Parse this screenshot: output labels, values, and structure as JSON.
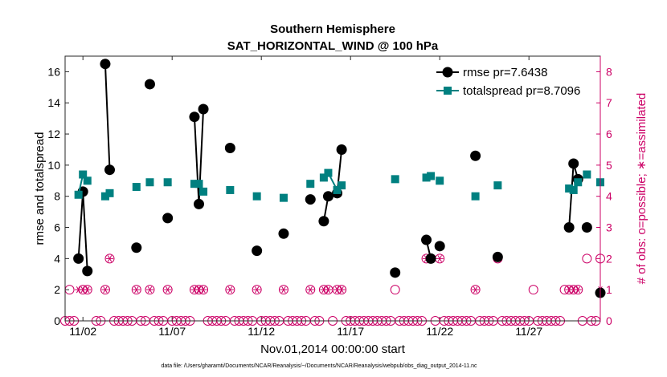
{
  "chart_data": {
    "type": "line",
    "title": "Southern Hemisphere",
    "subtitle": "SAT_HORIZONTAL_WIND @ 100 hPa",
    "xlabel": "Nov.01,2014 00:00:00 start",
    "ylabel": "rmse and totalspread",
    "y2label": "# of obs: o=possible; ∗=assimilated",
    "footnote": "data file: /Users/gharamti/Documents/NCAR/Reanalysis/~/Documents/NCAR/Reanalysis/webpub/obs_diag_output_2014-11.nc",
    "xlim": [
      0.5,
      30.5
    ],
    "ylim": [
      0,
      17
    ],
    "y2lim": [
      0,
      8.5
    ],
    "xticks": [
      1.5,
      6.5,
      11.5,
      16.5,
      21.5,
      26.5
    ],
    "xtick_labels": [
      "11/02",
      "11/07",
      "11/12",
      "11/17",
      "11/22",
      "11/27"
    ],
    "yticks": [
      0,
      2,
      4,
      6,
      8,
      10,
      12,
      14,
      16
    ],
    "y2ticks": [
      0,
      1,
      2,
      3,
      4,
      5,
      6,
      7,
      8
    ],
    "legend_position": "top-right",
    "series": [
      {
        "name": "rmse pr=7.6438",
        "color": "#000000",
        "points": [
          [
            1.25,
            4.0
          ],
          [
            1.5,
            8.3
          ],
          [
            1.75,
            3.2
          ],
          null,
          [
            2.75,
            16.5
          ],
          [
            3.0,
            9.7
          ],
          null,
          [
            4.5,
            4.7
          ],
          null,
          [
            5.25,
            15.2
          ],
          null,
          [
            6.25,
            6.6
          ],
          null,
          [
            7.75,
            13.1
          ],
          [
            8.0,
            7.5
          ],
          [
            8.25,
            13.6
          ],
          null,
          [
            9.75,
            11.1
          ],
          null,
          [
            11.25,
            4.5
          ],
          null,
          [
            12.75,
            5.6
          ],
          null,
          [
            14.25,
            7.8
          ],
          null,
          [
            15.0,
            6.4
          ],
          [
            15.25,
            8.0
          ],
          [
            15.75,
            8.2
          ],
          [
            16.0,
            11.0
          ],
          null,
          [
            19.0,
            3.1
          ],
          null,
          [
            20.75,
            5.2
          ],
          [
            21.0,
            4.0
          ],
          null,
          [
            21.5,
            4.8
          ],
          null,
          [
            23.5,
            10.6
          ],
          null,
          [
            24.75,
            4.1
          ],
          null,
          [
            28.75,
            6.0
          ],
          [
            29.0,
            10.1
          ],
          [
            29.25,
            9.1
          ],
          null,
          [
            29.75,
            6.0
          ],
          null,
          [
            30.5,
            1.8
          ]
        ]
      },
      {
        "name": "totalspread pr=8.7096",
        "color": "#008080",
        "points": [
          [
            1.25,
            8.1
          ],
          [
            1.5,
            9.4
          ],
          [
            1.75,
            9.0
          ],
          null,
          [
            2.75,
            8.0
          ],
          [
            3.0,
            8.2
          ],
          null,
          [
            4.5,
            8.6
          ],
          null,
          [
            5.25,
            8.9
          ],
          null,
          [
            6.25,
            8.9
          ],
          null,
          [
            7.75,
            8.8
          ],
          [
            8.0,
            8.8
          ],
          [
            8.25,
            8.3
          ],
          null,
          [
            9.75,
            8.4
          ],
          null,
          [
            11.25,
            8.0
          ],
          null,
          [
            12.75,
            7.9
          ],
          null,
          [
            14.25,
            8.8
          ],
          null,
          [
            15.0,
            9.2
          ],
          [
            15.25,
            9.5
          ],
          [
            15.75,
            8.4
          ],
          [
            16.0,
            8.7
          ],
          null,
          [
            19.0,
            9.1
          ],
          null,
          [
            20.75,
            9.2
          ],
          [
            21.0,
            9.3
          ],
          null,
          [
            21.5,
            9.0
          ],
          null,
          [
            23.5,
            8.0
          ],
          null,
          [
            24.75,
            8.7
          ],
          null,
          [
            28.75,
            8.5
          ],
          [
            29.0,
            8.4
          ],
          [
            29.25,
            8.9
          ],
          null,
          [
            29.75,
            9.4
          ],
          null,
          [
            30.5,
            8.9
          ]
        ]
      }
    ],
    "obs": {
      "name": "# of obs",
      "color": "#cc0066",
      "possible": [
        [
          0.75,
          1
        ],
        [
          1.25,
          2
        ],
        [
          1.5,
          1
        ],
        [
          1.75,
          1
        ],
        [
          2.75,
          1
        ],
        [
          3.0,
          2
        ],
        [
          4.5,
          1
        ],
        [
          5.25,
          1
        ],
        [
          6.25,
          1
        ],
        [
          7.75,
          1
        ],
        [
          8.0,
          1
        ],
        [
          8.25,
          1
        ],
        [
          9.75,
          1
        ],
        [
          11.25,
          1
        ],
        [
          12.75,
          1
        ],
        [
          14.25,
          1
        ],
        [
          15.0,
          1
        ],
        [
          15.25,
          1
        ],
        [
          15.75,
          1
        ],
        [
          16.0,
          1
        ],
        [
          19.0,
          1
        ],
        [
          20.75,
          2
        ],
        [
          21.0,
          2
        ],
        [
          21.5,
          2
        ],
        [
          23.5,
          1
        ],
        [
          24.75,
          2
        ],
        [
          26.75,
          1
        ],
        [
          28.5,
          1
        ],
        [
          28.75,
          1
        ],
        [
          29.0,
          1
        ],
        [
          29.25,
          1
        ],
        [
          29.75,
          2
        ],
        [
          30.5,
          2
        ]
      ],
      "assimilated": [
        [
          1.25,
          1
        ],
        [
          1.5,
          1
        ],
        [
          1.75,
          1
        ],
        [
          2.75,
          1
        ],
        [
          3.0,
          2
        ],
        [
          4.5,
          1
        ],
        [
          5.25,
          1
        ],
        [
          6.25,
          1
        ],
        [
          7.75,
          1
        ],
        [
          8.0,
          1
        ],
        [
          8.25,
          1
        ],
        [
          9.75,
          1
        ],
        [
          11.25,
          1
        ],
        [
          12.75,
          1
        ],
        [
          14.25,
          1
        ],
        [
          15.0,
          1
        ],
        [
          15.25,
          1
        ],
        [
          15.75,
          1
        ],
        [
          16.0,
          1
        ],
        [
          20.75,
          2
        ],
        [
          21.0,
          2
        ],
        [
          21.5,
          2
        ],
        [
          23.5,
          1
        ],
        [
          24.75,
          2
        ],
        [
          28.75,
          1
        ],
        [
          29.0,
          1
        ],
        [
          29.25,
          1
        ],
        [
          30.5,
          1
        ]
      ],
      "zero_days": [
        0.5,
        0.75,
        1.0,
        2.25,
        2.5,
        3.25,
        3.5,
        3.75,
        4.0,
        4.25,
        4.75,
        5.0,
        5.5,
        5.75,
        6.0,
        6.5,
        6.75,
        7.0,
        7.25,
        7.5,
        8.5,
        8.75,
        9.0,
        9.25,
        9.5,
        10.0,
        10.25,
        10.5,
        10.75,
        11.0,
        11.5,
        11.75,
        12.0,
        12.25,
        12.5,
        13.0,
        13.25,
        13.5,
        13.75,
        14.0,
        14.5,
        14.75,
        15.5,
        16.25,
        16.5,
        16.75,
        17.0,
        17.25,
        17.5,
        17.75,
        18.0,
        18.25,
        18.5,
        18.75,
        19.25,
        19.5,
        19.75,
        20.0,
        20.25,
        20.5,
        21.25,
        21.75,
        22.0,
        22.25,
        22.5,
        22.75,
        23.0,
        23.25,
        23.75,
        24.0,
        24.25,
        24.5,
        25.0,
        25.25,
        25.5,
        25.75,
        26.0,
        26.25,
        26.5,
        27.0,
        27.25,
        27.5,
        27.75,
        28.0,
        28.25,
        29.5,
        30.0,
        30.25
      ]
    }
  }
}
